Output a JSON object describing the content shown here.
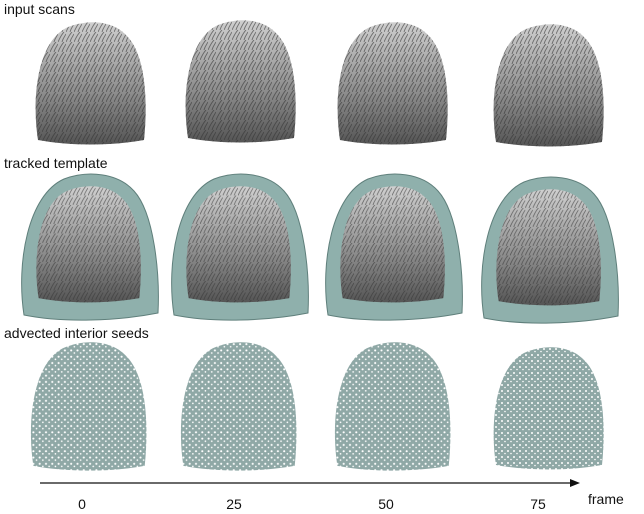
{
  "rows": [
    {
      "label": "input scans"
    },
    {
      "label": "tracked template"
    },
    {
      "label": "advected interior seeds"
    }
  ],
  "axis": {
    "label": "frame",
    "ticks": [
      0,
      25,
      50,
      75
    ]
  }
}
